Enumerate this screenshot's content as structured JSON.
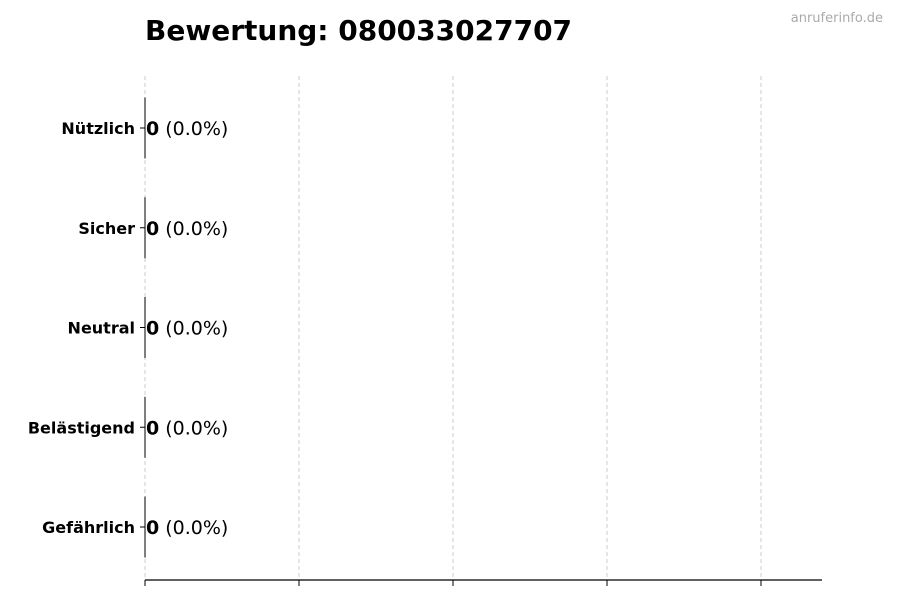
{
  "watermark": "anruferinfo.de",
  "chart_data": {
    "type": "bar",
    "orientation": "horizontal",
    "title": "Bewertung: 080033027707",
    "xlabel": "",
    "ylabel": "",
    "categories": [
      "Nützlich",
      "Sicher",
      "Neutral",
      "Belästigend",
      "Gefährlich"
    ],
    "values": [
      0,
      0,
      0,
      0,
      0
    ],
    "value_labels": [
      "0",
      "0",
      "0",
      "0",
      "0"
    ],
    "percent_labels": [
      "(0.0%)",
      "(0.0%)",
      "(0.0%)",
      "(0.0%)",
      "(0.0%)"
    ],
    "x_tick_labels": [],
    "grid": "vertical dashed",
    "colors": {
      "bar_edge": "#000000",
      "grid": "#cccccc",
      "watermark": "#aaaaaa"
    }
  }
}
